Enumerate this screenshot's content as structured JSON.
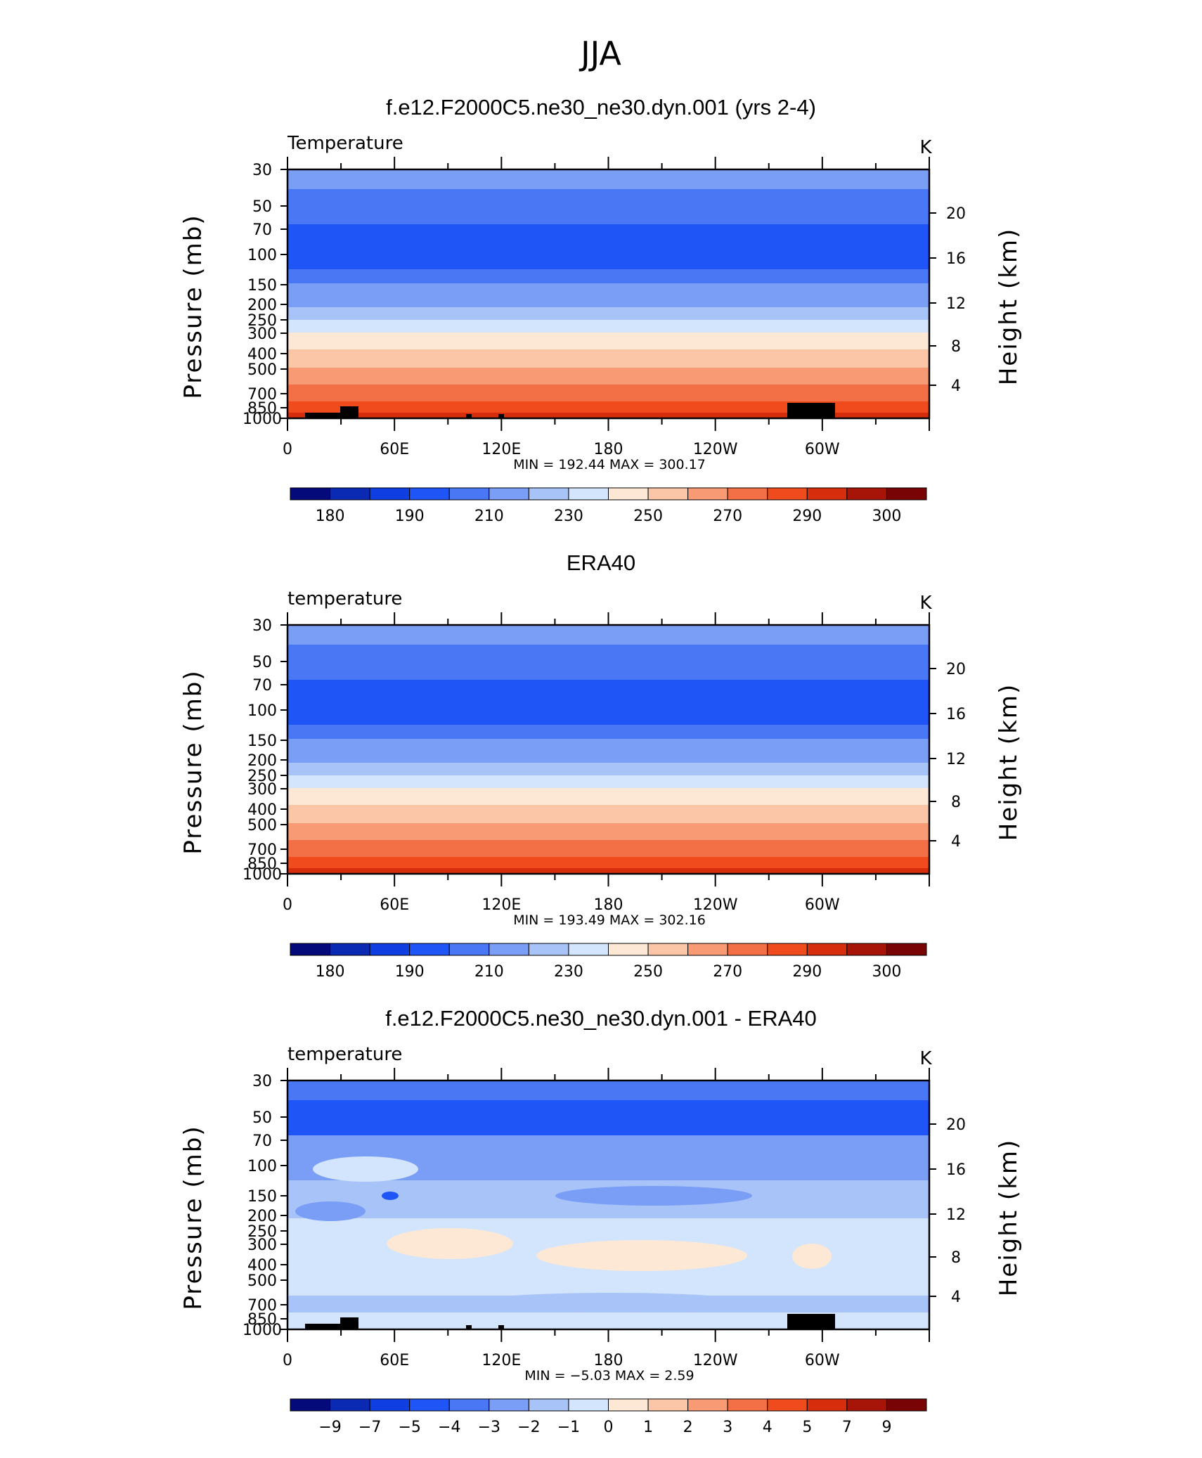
{
  "figure": {
    "title": "JJA"
  },
  "chart_data": [
    {
      "type": "heatmap",
      "title": "f.e12.F2000C5.ne30_ne30.dyn.001 (yrs 2-4)",
      "left_label": "Temperature",
      "units": "K",
      "ylabel": "Pressure (mb)",
      "ylabel_right": "Height (km)",
      "x_ticks": [
        "0",
        "60E",
        "120E",
        "180",
        "120W",
        "60W"
      ],
      "y_ticks": [
        "30",
        "50",
        "70",
        "100",
        "150",
        "200",
        "250",
        "300",
        "400",
        "500",
        "700",
        "850",
        "1000"
      ],
      "y_ticks_right": [
        "20",
        "16",
        "12",
        "8",
        "4"
      ],
      "min_max_label": "MIN =  192.44   MAX =  300.17",
      "min": 192.44,
      "max": 300.17,
      "colorbar_labels": [
        "180",
        "190",
        "210",
        "230",
        "250",
        "270",
        "290",
        "300"
      ],
      "colorbar_colors": [
        "#050a7a",
        "#0a2ab4",
        "#0f3fe3",
        "#1f55f7",
        "#4a78f5",
        "#7a9ef5",
        "#a8c3f8",
        "#d3e5fc",
        "#fde8d6",
        "#fbc5a7",
        "#f89a73",
        "#f36f45",
        "#ef4b1c",
        "#d62d0c",
        "#a71408",
        "#780405"
      ],
      "band_colors_top_to_bottom": [
        "#7a9ef5",
        "#4a78f5",
        "#1f55f7",
        "#4a78f5",
        "#7a9ef5",
        "#a8c3f8",
        "#d3e5fc",
        "#fde8d6",
        "#fbc5a7",
        "#f89a73",
        "#f36f45",
        "#ef4b1c",
        "#d62d0c"
      ]
    },
    {
      "type": "heatmap",
      "title": "ERA40",
      "left_label": "temperature",
      "units": "K",
      "ylabel": "Pressure (mb)",
      "ylabel_right": "Height (km)",
      "x_ticks": [
        "0",
        "60E",
        "120E",
        "180",
        "120W",
        "60W"
      ],
      "y_ticks": [
        "30",
        "50",
        "70",
        "100",
        "150",
        "200",
        "250",
        "300",
        "400",
        "500",
        "700",
        "850",
        "1000"
      ],
      "y_ticks_right": [
        "20",
        "16",
        "12",
        "8",
        "4"
      ],
      "min_max_label": "MIN =  193.49   MAX =  302.16",
      "min": 193.49,
      "max": 302.16,
      "colorbar_labels": [
        "180",
        "190",
        "210",
        "230",
        "250",
        "270",
        "290",
        "300"
      ],
      "colorbar_colors": [
        "#050a7a",
        "#0a2ab4",
        "#0f3fe3",
        "#1f55f7",
        "#4a78f5",
        "#7a9ef5",
        "#a8c3f8",
        "#d3e5fc",
        "#fde8d6",
        "#fbc5a7",
        "#f89a73",
        "#f36f45",
        "#ef4b1c",
        "#d62d0c",
        "#a71408",
        "#780405"
      ],
      "band_colors_top_to_bottom": [
        "#7a9ef5",
        "#4a78f5",
        "#1f55f7",
        "#4a78f5",
        "#7a9ef5",
        "#a8c3f8",
        "#d3e5fc",
        "#fde8d6",
        "#fbc5a7",
        "#f89a73",
        "#f36f45",
        "#ef4b1c",
        "#d62d0c"
      ]
    },
    {
      "type": "heatmap",
      "title": "f.e12.F2000C5.ne30_ne30.dyn.001 - ERA40",
      "left_label": "temperature",
      "units": "K",
      "ylabel": "Pressure (mb)",
      "ylabel_right": "Height (km)",
      "x_ticks": [
        "0",
        "60E",
        "120E",
        "180",
        "120W",
        "60W"
      ],
      "y_ticks": [
        "30",
        "50",
        "70",
        "100",
        "150",
        "200",
        "250",
        "300",
        "400",
        "500",
        "700",
        "850",
        "1000"
      ],
      "y_ticks_right": [
        "20",
        "16",
        "12",
        "8",
        "4"
      ],
      "min_max_label": "MIN =   −5.03   MAX =     2.59",
      "min": -5.03,
      "max": 2.59,
      "colorbar_labels": [
        "−9",
        "−7",
        "−5",
        "−4",
        "−3",
        "−2",
        "−1",
        "0",
        "1",
        "2",
        "3",
        "4",
        "5",
        "7",
        "9"
      ],
      "colorbar_colors": [
        "#050a7a",
        "#0a2ab4",
        "#0f3fe3",
        "#1f55f7",
        "#4a78f5",
        "#7a9ef5",
        "#a8c3f8",
        "#d3e5fc",
        "#fde8d6",
        "#fbc5a7",
        "#f89a73",
        "#f36f45",
        "#ef4b1c",
        "#d62d0c",
        "#a71408",
        "#780405"
      ],
      "band_colors_top_to_bottom": [
        "#4a78f5",
        "#1f55f7",
        "#7a9ef5",
        "#a8c3f8",
        "#a8c3f8",
        "#d3e5fc",
        "#d3e5fc",
        "#d3e5fc",
        "#d3e5fc",
        "#d3e5fc",
        "#a8c3f8",
        "#d3e5fc",
        "#d3e5fc"
      ]
    }
  ]
}
